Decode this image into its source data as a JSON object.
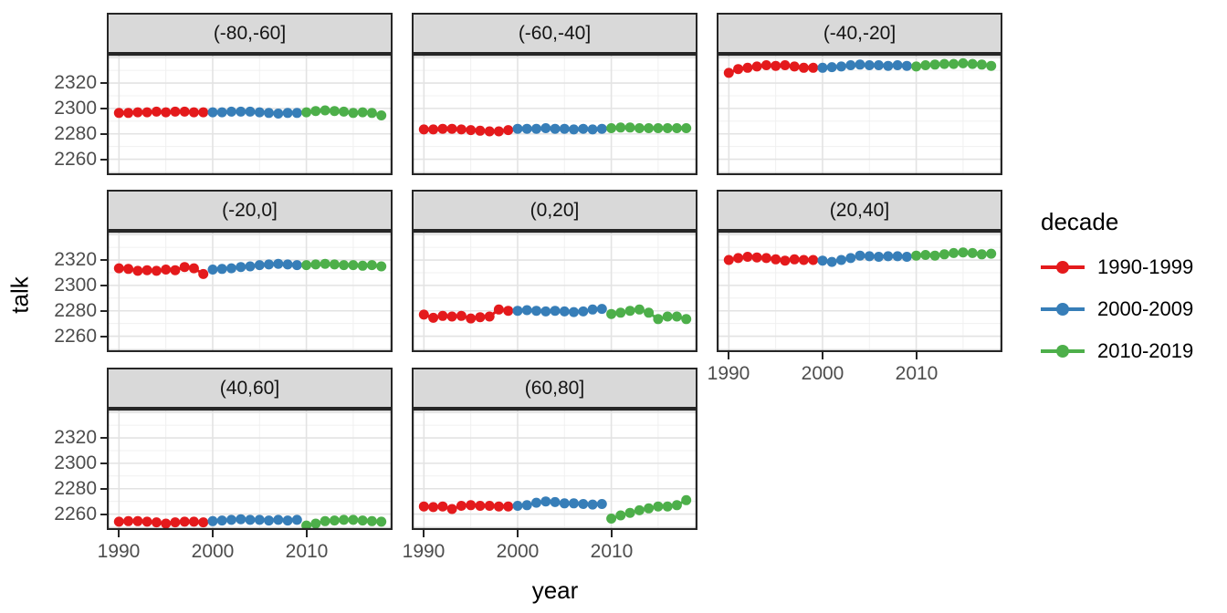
{
  "chart_data": {
    "type": "scatter",
    "title": "",
    "xlabel": "year",
    "ylabel": "talk",
    "x_ticks": [
      1990,
      2000,
      2010
    ],
    "y_ticks": [
      2260,
      2280,
      2300,
      2320
    ],
    "y_grid_major": [
      2260,
      2280,
      2300,
      2320,
      2340
    ],
    "y_grid_minor": [
      2250,
      2270,
      2290,
      2310,
      2330
    ],
    "x_grid_minor": [
      1995,
      2005,
      2015
    ],
    "xlim": [
      1988.7,
      2019.2
    ],
    "ylim": [
      2247.5,
      2343
    ],
    "grid": "major+minor",
    "legend": {
      "title": "decade",
      "position": "right",
      "entries": [
        {
          "label": "1990-1999",
          "color": "#E41A1C",
          "start_year": 1990
        },
        {
          "label": "2000-2009",
          "color": "#377EB8",
          "start_year": 2000
        },
        {
          "label": "2010-2019",
          "color": "#4DAF4A",
          "start_year": 2010
        }
      ]
    },
    "facets": [
      {
        "label": "(-80,-60]",
        "series": {
          "1990-1999": [
            2296.5,
            2296.5,
            2297,
            2297,
            2297.5,
            2297,
            2297.5,
            2297.5,
            2297,
            2297
          ],
          "2000-2009": [
            2297,
            2297,
            2297.5,
            2297.5,
            2297.5,
            2297,
            2296.5,
            2296,
            2296.5,
            2296.5
          ],
          "2010-2019": [
            2297,
            2298,
            2298.5,
            2298,
            2297.5,
            2296.5,
            2297,
            2296.5,
            2294.5
          ]
        }
      },
      {
        "label": "(-60,-40]",
        "series": {
          "1990-1999": [
            2283.5,
            2283.5,
            2284,
            2284,
            2283.5,
            2283,
            2282.5,
            2282,
            2282,
            2283
          ],
          "2000-2009": [
            2284,
            2284,
            2284,
            2284.5,
            2284,
            2284,
            2283.5,
            2284,
            2283.5,
            2284
          ],
          "2010-2019": [
            2284.5,
            2285,
            2285,
            2284.5,
            2284.5,
            2284.5,
            2284.5,
            2284.5,
            2284.5
          ]
        }
      },
      {
        "label": "(-40,-20]",
        "series": {
          "1990-1999": [
            2328,
            2331,
            2332,
            2333,
            2334,
            2333.5,
            2334,
            2333,
            2332,
            2332
          ],
          "2000-2009": [
            2332,
            2332.5,
            2333,
            2334,
            2334.5,
            2334,
            2334,
            2333.5,
            2334,
            2333.5
          ],
          "2010-2019": [
            2333,
            2334,
            2334.5,
            2335,
            2335,
            2335.5,
            2335,
            2334.5,
            2333.5
          ]
        }
      },
      {
        "label": "(-20,0]",
        "series": {
          "1990-1999": [
            2313.5,
            2313,
            2311.5,
            2312,
            2311.5,
            2312.5,
            2312,
            2314.5,
            2313.5,
            2309
          ],
          "2000-2009": [
            2312.5,
            2313,
            2313.5,
            2314.5,
            2315,
            2316,
            2316.5,
            2317,
            2316.5,
            2316
          ],
          "2010-2019": [
            2316,
            2316.5,
            2317,
            2316.5,
            2316,
            2316,
            2315.5,
            2316,
            2315
          ]
        }
      },
      {
        "label": "(0,20]",
        "series": {
          "1990-1999": [
            2277,
            2274.5,
            2276,
            2275.5,
            2276,
            2274,
            2275,
            2275.5,
            2281,
            2280
          ],
          "2000-2009": [
            2280,
            2280.5,
            2280,
            2279.5,
            2280,
            2279.5,
            2279,
            2279.5,
            2281,
            2281.5
          ],
          "2010-2019": [
            2277.5,
            2278.5,
            2280,
            2281,
            2278.5,
            2273.5,
            2275.5,
            2275.5,
            2273.5
          ]
        }
      },
      {
        "label": "(20,40]",
        "series": {
          "1990-1999": [
            2320,
            2321.5,
            2322.5,
            2322,
            2321.5,
            2320.5,
            2319.5,
            2320.5,
            2320,
            2320
          ],
          "2000-2009": [
            2319.5,
            2318.5,
            2320,
            2321.5,
            2323.5,
            2323,
            2322.5,
            2323,
            2323,
            2322.5
          ],
          "2010-2019": [
            2323.5,
            2324,
            2323.5,
            2324.5,
            2325.5,
            2326,
            2325.5,
            2324.5,
            2325
          ]
        }
      },
      {
        "label": "(40,60]",
        "series": {
          "1990-1999": [
            2254,
            2254.5,
            2254.5,
            2254,
            2253.5,
            2252.5,
            2253.5,
            2254,
            2254,
            2253.5
          ],
          "2000-2009": [
            2254.5,
            2255,
            2255.5,
            2256,
            2255.5,
            2255.5,
            2255,
            2255.5,
            2255,
            2255.5
          ],
          "2010-2019": [
            2251,
            2252.5,
            2254.5,
            2255,
            2255.5,
            2255.5,
            2255,
            2254.5,
            2254
          ]
        }
      },
      {
        "label": "(60,80]",
        "series": {
          "1990-1999": [
            2266,
            2265.5,
            2266,
            2264,
            2266.5,
            2267,
            2266.5,
            2266.5,
            2266,
            2266
          ],
          "2000-2009": [
            2266.5,
            2267,
            2269,
            2270,
            2269.5,
            2268.5,
            2268.5,
            2268,
            2267.5,
            2268
          ],
          "2010-2019": [
            2256.5,
            2259,
            2261,
            2263,
            2264.5,
            2266,
            2266,
            2267,
            2271
          ]
        }
      }
    ],
    "style_colors": {
      "strip_bg": "#D9D9D9",
      "panel_border": "#262626",
      "grid_major": "#E3E3E3",
      "grid_minor": "#F0F0F0",
      "tick_text": "#4D4D4D"
    }
  }
}
